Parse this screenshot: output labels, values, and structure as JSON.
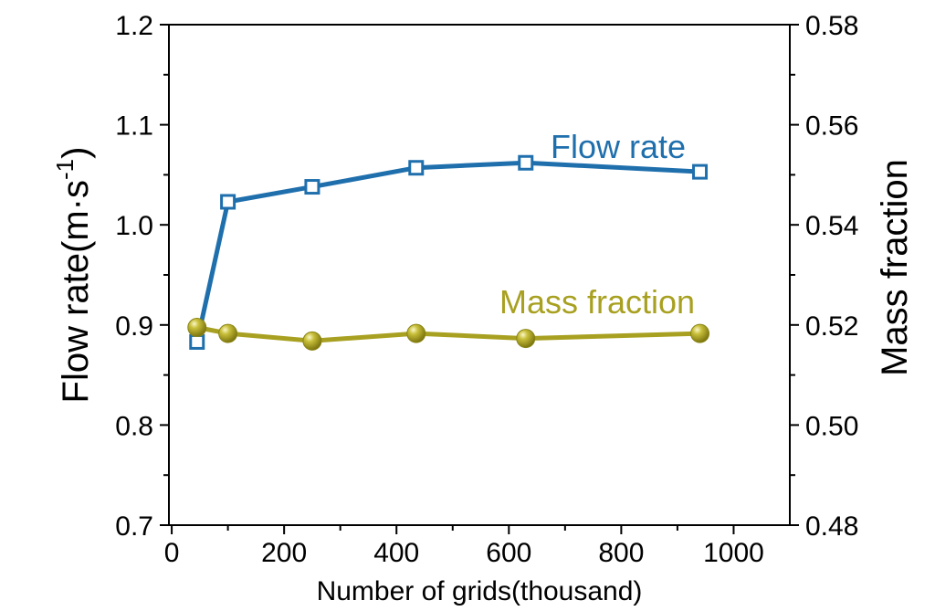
{
  "chart_data": {
    "type": "line",
    "xlabel": "Number of grids(thousand)",
    "ylabel": "Flow rate(m·s",
    "ylabel_sup": "-1",
    "ylabel_close": ")",
    "y2label": "Mass fraction",
    "xlim": [
      -5,
      1100
    ],
    "ylim": [
      0.7,
      1.2
    ],
    "y2lim": [
      0.48,
      0.58
    ],
    "x_ticks": [
      0,
      200,
      400,
      600,
      800,
      1000
    ],
    "x_tick_labels": [
      "0",
      "200",
      "400",
      "600",
      "800",
      "1000"
    ],
    "y_ticks": [
      0.7,
      0.8,
      0.9,
      1.0,
      1.1,
      1.2
    ],
    "y_tick_labels": [
      "0.7",
      "0.8",
      "0.9",
      "1.0",
      "1.1",
      "1.2"
    ],
    "y2_ticks": [
      0.48,
      0.5,
      0.52,
      0.54,
      0.56,
      0.58
    ],
    "y2_tick_labels": [
      "0.48",
      "0.50",
      "0.52",
      "0.54",
      "0.56",
      "0.58"
    ],
    "series": [
      {
        "name": "Flow rate",
        "axis": "left",
        "color": "#1f6fad",
        "marker": "square-open",
        "x": [
          45,
          100,
          250,
          435,
          630,
          940
        ],
        "y": [
          0.883,
          1.023,
          1.038,
          1.057,
          1.062,
          1.053
        ]
      },
      {
        "name": "Mass fraction",
        "axis": "right",
        "color": "#a8a020",
        "marker": "sphere",
        "x": [
          45,
          100,
          250,
          435,
          630,
          940
        ],
        "y": [
          0.5195,
          0.5183,
          0.5168,
          0.5183,
          0.5173,
          0.5183
        ]
      }
    ]
  }
}
